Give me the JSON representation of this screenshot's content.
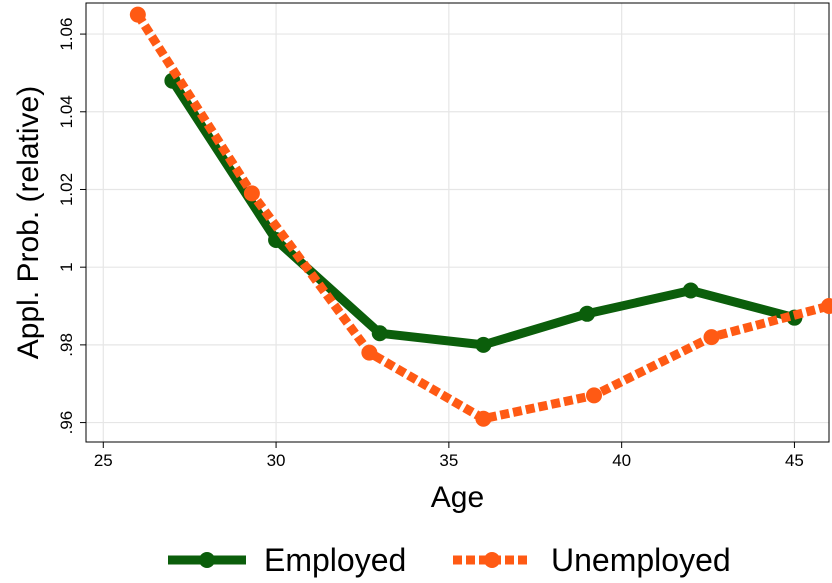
{
  "chart_data": {
    "type": "line",
    "title": "",
    "xlabel": "Age",
    "ylabel": "Appl. Prob. (relative)",
    "xlim": [
      24.5,
      46
    ],
    "ylim": [
      0.955,
      1.068
    ],
    "xticks": [
      25,
      30,
      35,
      40,
      45
    ],
    "yticks": [
      0.96,
      0.98,
      1,
      1.02,
      1.04,
      1.06
    ],
    "ytick_labels": [
      ".96",
      ".98",
      "1",
      "1.02",
      "1.04",
      "1.06"
    ],
    "grid": true,
    "legend_position": "bottom",
    "series": [
      {
        "name": "Employed",
        "color": "#0b5e0b",
        "style": "solid",
        "x": [
          27,
          30,
          33,
          36,
          39,
          42,
          45
        ],
        "y": [
          1.048,
          1.007,
          0.983,
          0.98,
          0.988,
          0.994,
          0.987
        ]
      },
      {
        "name": "Unemployed",
        "color": "#ff5a14",
        "style": "dashed",
        "x": [
          26,
          29.3,
          32.7,
          36,
          39.2,
          42.6,
          46
        ],
        "y": [
          1.065,
          1.019,
          0.978,
          0.961,
          0.967,
          0.982,
          0.99
        ]
      }
    ]
  }
}
